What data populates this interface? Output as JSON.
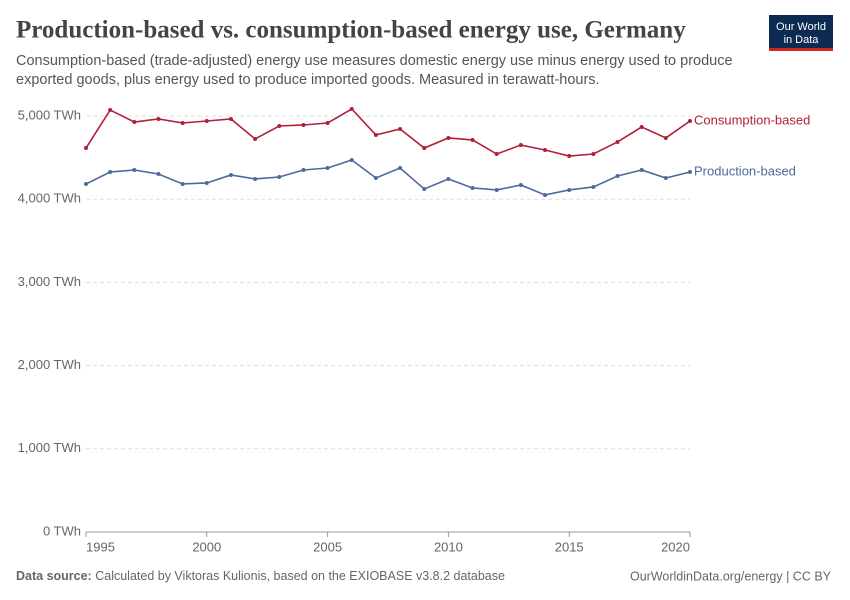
{
  "logo": [
    "Our World",
    "in Data"
  ],
  "chart_data": {
    "type": "line",
    "title": "Production-based vs. consumption-based energy use, Germany",
    "subtitle": [
      "Consumption-based (trade-adjusted) energy use measures domestic energy use minus energy used to produce",
      "exported goods, plus energy used to produce imported goods. Measured in terawatt-hours."
    ],
    "x": [
      1995,
      1996,
      1997,
      1998,
      1999,
      2000,
      2001,
      2002,
      2003,
      2004,
      2005,
      2006,
      2007,
      2008,
      2009,
      2010,
      2011,
      2012,
      2013,
      2014,
      2015,
      2016,
      2017,
      2018,
      2019,
      2020
    ],
    "series": [
      {
        "name": "Consumption-based",
        "color": "#b0203a",
        "values": [
          4615,
          5072,
          4928,
          4964,
          4916,
          4940,
          4964,
          4724,
          4880,
          4892,
          4916,
          5084,
          4772,
          4844,
          4615,
          4736,
          4712,
          4543,
          4651,
          4591,
          4519,
          4543,
          4688,
          4868,
          4736,
          4940
        ]
      },
      {
        "name": "Production-based",
        "color": "#4c6a9c",
        "values": [
          4183,
          4327,
          4351,
          4303,
          4183,
          4195,
          4291,
          4243,
          4267,
          4351,
          4375,
          4471,
          4255,
          4375,
          4123,
          4243,
          4135,
          4111,
          4171,
          4051,
          4111,
          4147,
          4279,
          4351,
          4255,
          4327
        ]
      }
    ],
    "xlim": [
      1995,
      2020
    ],
    "xticks": [
      1995,
      2000,
      2005,
      2010,
      2015,
      2020
    ],
    "ylim": [
      0,
      5000
    ],
    "yticks": [
      {
        "value": 0,
        "label": "0 TWh"
      },
      {
        "value": 1000,
        "label": "1,000 TWh"
      },
      {
        "value": 2000,
        "label": "2,000 TWh"
      },
      {
        "value": 3000,
        "label": "3,000 TWh"
      },
      {
        "value": 4000,
        "label": "4,000 TWh"
      },
      {
        "value": 5000,
        "label": "5,000 TWh"
      }
    ],
    "grid": true
  },
  "footer": {
    "source_label": "Data source:",
    "source": "Calculated by Viktoras Kulionis, based on the EXIOBASE v3.8.2 database",
    "credit": "OurWorldinData.org/energy | CC BY"
  }
}
